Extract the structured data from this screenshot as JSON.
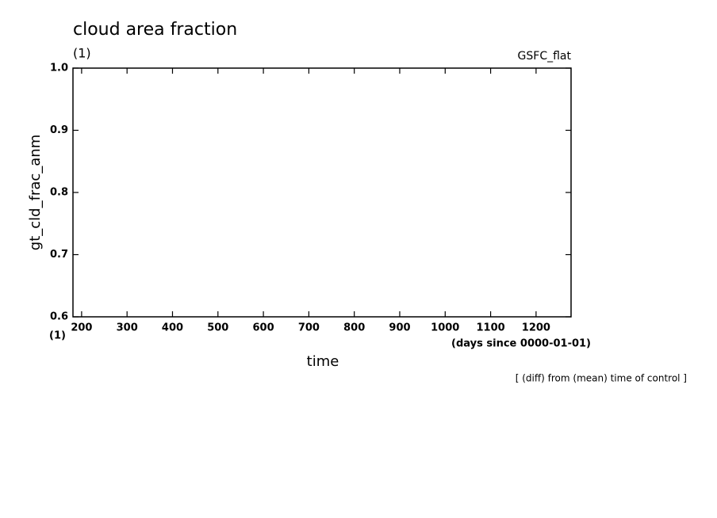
{
  "chart_data": {
    "type": "line",
    "title": "cloud area fraction",
    "units": "(1)",
    "source": "GSFC_flat",
    "ylabel": "gt_cld_frac_anm",
    "xunits_left": "(1)",
    "xlabel": "time",
    "xunits": "(days since 0000-01-01)",
    "note": "[ (diff) from (mean) time of control ]",
    "xlim": [
      181,
      1277
    ],
    "xticks": [
      200,
      300,
      400,
      500,
      600,
      700,
      800,
      900,
      1000,
      1100,
      1200
    ],
    "ylim": [
      0.6,
      1.0
    ],
    "yticks": [
      0.6,
      0.7,
      0.8,
      0.9,
      {
        "value": 1.0,
        "label": "1.0"
      }
    ],
    "grid": false,
    "series": []
  }
}
